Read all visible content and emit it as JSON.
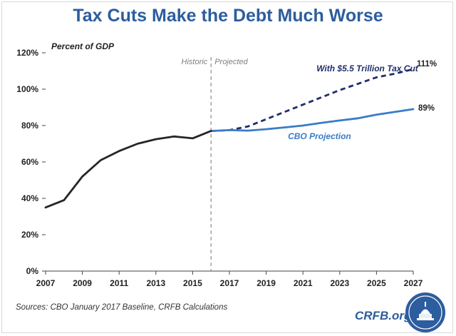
{
  "title": "Tax Cuts Make the Debt Much Worse",
  "source": "Sources: CBO January 2017 Baseline, CRFB Calculations",
  "brand": "CRFB.org",
  "colors": {
    "title": "#2c5d9e",
    "historic": "#262626",
    "cbo": "#3a7cc7",
    "taxcut": "#1f2e6b"
  },
  "chart_data": {
    "type": "line",
    "title": "Tax Cuts Make the Debt Much Worse",
    "ylabel": "Percent of GDP",
    "xlabel": "",
    "xlim": [
      2007,
      2027
    ],
    "ylim": [
      0,
      120
    ],
    "x_ticks": [
      "2007",
      "2009",
      "2011",
      "2013",
      "2015",
      "2017",
      "2019",
      "2021",
      "2023",
      "2025",
      "2027"
    ],
    "y_ticks": [
      "0%",
      "20%",
      "40%",
      "60%",
      "80%",
      "100%",
      "120%"
    ],
    "divider_x": 2016,
    "divider_labels": {
      "left": "Historic",
      "right": "Projected"
    },
    "series": [
      {
        "name": "Historic",
        "style": "solid",
        "x": [
          2007,
          2008,
          2009,
          2010,
          2011,
          2012,
          2013,
          2014,
          2015,
          2016
        ],
        "values": [
          35,
          39,
          52,
          61,
          66,
          70,
          72.5,
          74,
          73,
          77
        ]
      },
      {
        "name": "CBO Projection",
        "style": "solid",
        "x": [
          2016,
          2017,
          2018,
          2019,
          2020,
          2021,
          2022,
          2023,
          2024,
          2025,
          2026,
          2027
        ],
        "values": [
          77,
          77.5,
          77.2,
          78,
          79,
          80,
          81.5,
          82.8,
          84,
          86,
          87.5,
          89
        ]
      },
      {
        "name": "With $5.5 Trillion Tax Cut",
        "style": "dashed",
        "x": [
          2016,
          2017,
          2018,
          2019,
          2020,
          2021,
          2022,
          2023,
          2024,
          2025,
          2026,
          2027
        ],
        "values": [
          77,
          77.5,
          79.5,
          83.5,
          87.5,
          91.5,
          95.5,
          99.5,
          103,
          106.5,
          108.5,
          111
        ]
      }
    ],
    "end_labels": {
      "cbo": "89%",
      "taxcut": "111%"
    }
  }
}
